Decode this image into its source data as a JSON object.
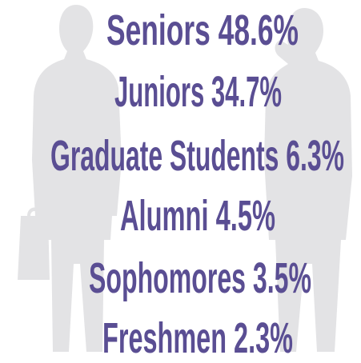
{
  "items": [
    {
      "label": "Seniors",
      "share": "48.6%"
    },
    {
      "label": "Juniors",
      "share": "34.7%"
    },
    {
      "label": "Graduate Students",
      "share": "6.3%"
    },
    {
      "label": "Alumni",
      "share": "4.5%"
    },
    {
      "label": "Sophomores",
      "share": "3.5%"
    },
    {
      "label": "Freshmen",
      "share": "2.3%"
    }
  ]
}
